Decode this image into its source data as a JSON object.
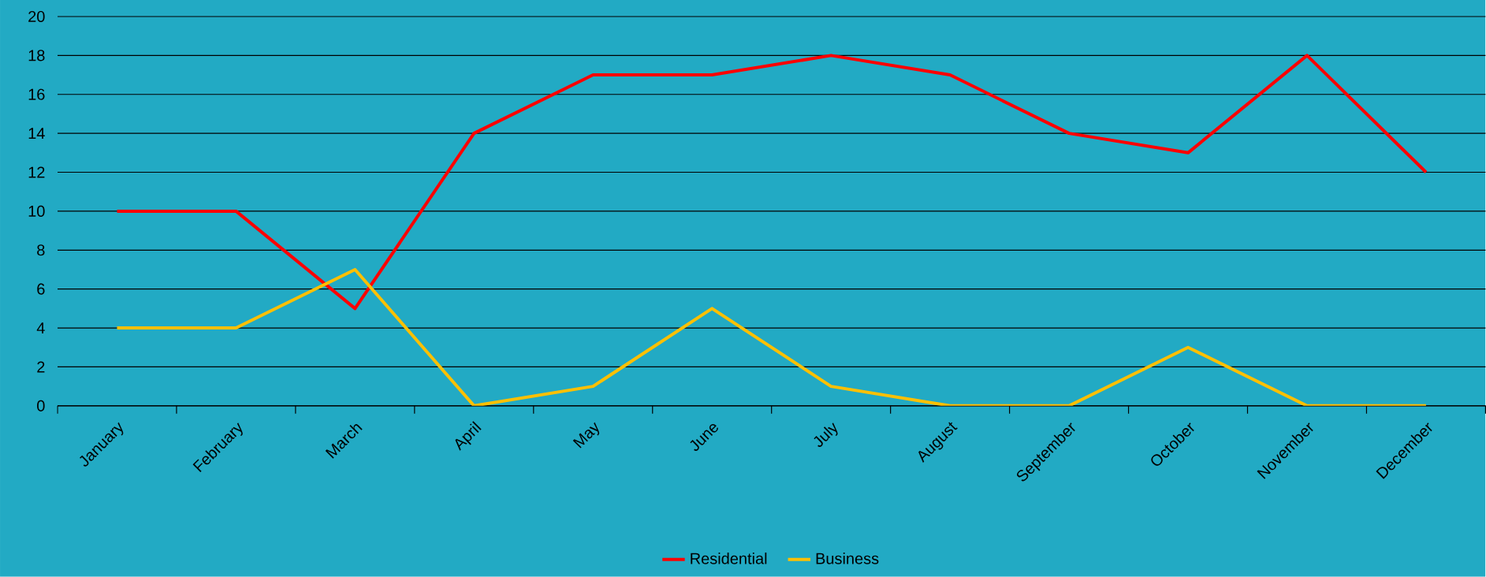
{
  "chart_data": {
    "type": "line",
    "categories": [
      "January",
      "February",
      "March",
      "April",
      "May",
      "June",
      "July",
      "August",
      "September",
      "October",
      "November",
      "December"
    ],
    "series": [
      {
        "name": "Residential",
        "color": "#ff0000",
        "values": [
          10,
          10,
          5,
          14,
          17,
          17,
          18,
          17,
          14,
          13,
          18,
          12
        ]
      },
      {
        "name": "Business",
        "color": "#ffc000",
        "values": [
          4,
          4,
          7,
          0,
          1,
          5,
          1,
          0,
          0,
          3,
          0,
          0
        ]
      }
    ],
    "ylim": [
      0,
      20
    ],
    "yticks": [
      0,
      2,
      4,
      6,
      8,
      10,
      12,
      14,
      16,
      18,
      20
    ],
    "grid": "y",
    "legend": "bottom"
  }
}
